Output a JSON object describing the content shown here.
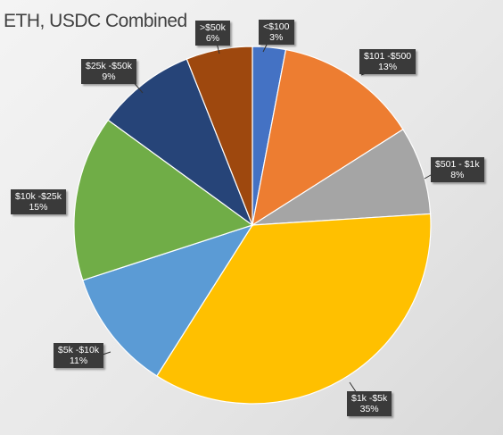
{
  "chart_data": {
    "type": "pie",
    "title": "ETH, USDC Combined",
    "categories": [
      "<$100",
      "$101 -$500",
      "$501 - $1k",
      "$1k -$5k",
      "$5k -$10k",
      "$10k -$25k",
      "$25k -$50k",
      ">$50k"
    ],
    "values": [
      3,
      13,
      8,
      35,
      11,
      15,
      9,
      6
    ],
    "value_labels": [
      "3%",
      "13%",
      "8%",
      "35%",
      "11%",
      "15%",
      "9%",
      "6%"
    ],
    "colors": [
      "#4472c4",
      "#ed7d31",
      "#a5a5a5",
      "#ffc000",
      "#5b9bd5",
      "#70ad47",
      "#264478",
      "#9e480e"
    ],
    "start_angle_deg": 0,
    "direction": "clockwise",
    "legend": "none",
    "data_label_style": "callout"
  }
}
